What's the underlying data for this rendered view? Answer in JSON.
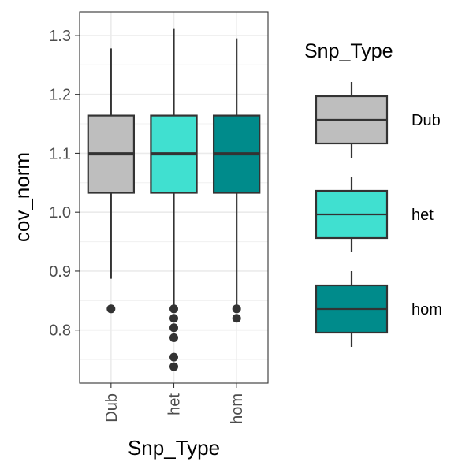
{
  "chart_data": {
    "type": "box",
    "xlabel": "Snp_Type",
    "ylabel": "cov_norm",
    "ylim": [
      0.71,
      1.34
    ],
    "yticks": [
      0.8,
      0.9,
      1.0,
      1.1,
      1.2,
      1.3
    ],
    "ytick_labels": [
      "0.8",
      "0.9",
      "1.0",
      "1.1",
      "1.2",
      "1.3"
    ],
    "grid": true,
    "categories": [
      "Dub",
      "het",
      "hom"
    ],
    "boxes": [
      {
        "name": "Dub",
        "color": "#bebebe",
        "min": 0.887,
        "q1": 1.033,
        "median": 1.099,
        "q3": 1.164,
        "max": 1.278,
        "outliers": [
          0.836
        ]
      },
      {
        "name": "het",
        "color": "#40e0d0",
        "min": 0.838,
        "q1": 1.033,
        "median": 1.099,
        "q3": 1.164,
        "max": 1.311,
        "outliers": [
          0.836,
          0.82,
          0.804,
          0.787,
          0.754,
          0.738
        ]
      },
      {
        "name": "hom",
        "color": "#008b8b",
        "min": 0.838,
        "q1": 1.033,
        "median": 1.099,
        "q3": 1.164,
        "max": 1.295,
        "outliers": [
          0.836,
          0.82
        ]
      }
    ],
    "legend": {
      "title": "Snp_Type",
      "position": "right",
      "entries": [
        {
          "label": "Dub",
          "color": "#bebebe"
        },
        {
          "label": "het",
          "color": "#40e0d0"
        },
        {
          "label": "hom",
          "color": "#008b8b"
        }
      ]
    }
  }
}
